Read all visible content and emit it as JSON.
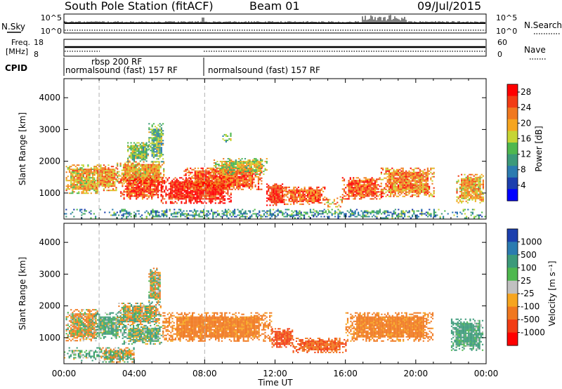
{
  "header": {
    "station": "South Pole Station (fitACF)",
    "beam": "Beam 01",
    "date": "09/Jul/2015"
  },
  "status_panels": {
    "nsky_label": "N.Sky",
    "nsky_ticks": [
      "10^5",
      "10^0"
    ],
    "nsearch_label": "N.Search",
    "nsearch_ticks": [
      "10^5",
      "10^0"
    ],
    "freq_label_line1": "Freq.",
    "freq_label_line2": "[MHz]",
    "freq_ticks": [
      "18",
      "8"
    ],
    "nave_label": "Nave",
    "nave_ticks": [
      "60",
      "0"
    ],
    "cpid_label": "CPID",
    "cpid_segments": [
      {
        "label": "normalsound (fast) 157 RF",
        "start_hour": 0,
        "end_hour": 8
      },
      {
        "label": "rbsp 200 RF",
        "start_hour": 2,
        "end_hour": 8
      },
      {
        "label": "normalsound (fast) 157 RF",
        "start_hour": 8,
        "end_hour": 24
      }
    ]
  },
  "chart_data": [
    {
      "type": "heatmap",
      "title": "",
      "xlabel": "Time UT",
      "ylabel": "Slant Range [km]",
      "xlim": [
        0,
        24
      ],
      "ylim": [
        180,
        4600
      ],
      "x_ticks": [
        "00:00",
        "04:00",
        "08:00",
        "12:00",
        "16:00",
        "20:00",
        "00:00"
      ],
      "y_ticks": [
        1000,
        2000,
        3000,
        4000
      ],
      "colorbar_label": "Power [dB]",
      "colorbar_ticks": [
        "4",
        "8",
        "12",
        "16",
        "20",
        "24",
        "28"
      ],
      "colorbar_range": [
        0,
        30
      ],
      "colors": [
        "#0000ff",
        "#1c3fae",
        "#2b7bb0",
        "#3c9a7a",
        "#4fb84f",
        "#c6d534",
        "#f6a51f",
        "#f0781f",
        "#f23c14",
        "#ff0000"
      ],
      "regions": [
        {
          "t0": 0.1,
          "t1": 1.9,
          "r0": 1000,
          "r1": 1900,
          "value": 19
        },
        {
          "t0": 1.7,
          "t1": 3.0,
          "r0": 1100,
          "r1": 1900,
          "value": 21
        },
        {
          "t0": 3.0,
          "t1": 5.7,
          "r0": 1300,
          "r1": 2000,
          "value": 20
        },
        {
          "t0": 3.2,
          "t1": 5.6,
          "r0": 800,
          "r1": 1500,
          "value": 25
        },
        {
          "t0": 5.5,
          "t1": 9.5,
          "r0": 700,
          "r1": 1500,
          "value": 28
        },
        {
          "t0": 6.8,
          "t1": 11.2,
          "r0": 1100,
          "r1": 1800,
          "value": 24
        },
        {
          "t0": 8.5,
          "t1": 11.5,
          "r0": 1600,
          "r1": 2100,
          "value": 17
        },
        {
          "t0": 11.5,
          "t1": 12.5,
          "r0": 600,
          "r1": 1300,
          "value": 27
        },
        {
          "t0": 12.5,
          "t1": 14.8,
          "r0": 650,
          "r1": 1200,
          "value": 24
        },
        {
          "t0": 14.8,
          "t1": 15.8,
          "r0": 500,
          "r1": 900,
          "value": 20
        },
        {
          "t0": 15.8,
          "t1": 18.0,
          "r0": 800,
          "r1": 1500,
          "value": 24
        },
        {
          "t0": 18.0,
          "t1": 21.0,
          "r0": 900,
          "r1": 1800,
          "value": 22
        },
        {
          "t0": 22.3,
          "t1": 23.8,
          "r0": 700,
          "r1": 1600,
          "value": 20
        },
        {
          "t0": 0.0,
          "t1": 24.0,
          "r0": 200,
          "r1": 500,
          "value": 10
        },
        {
          "t0": 4.8,
          "t1": 5.6,
          "r0": 2000,
          "r1": 3200,
          "value": 13
        },
        {
          "t0": 3.6,
          "t1": 4.8,
          "r0": 2000,
          "r1": 2600,
          "value": 14
        },
        {
          "t0": 9.0,
          "t1": 9.5,
          "r0": 2600,
          "r1": 2900,
          "value": 13
        }
      ]
    },
    {
      "type": "heatmap",
      "title": "",
      "xlabel": "Time UT",
      "ylabel": "Slant Range [km]",
      "xlim": [
        0,
        24
      ],
      "ylim": [
        180,
        4600
      ],
      "x_ticks": [
        "00:00",
        "04:00",
        "08:00",
        "12:00",
        "16:00",
        "20:00",
        "00:00"
      ],
      "y_ticks": [
        1000,
        2000,
        3000,
        4000
      ],
      "colorbar_label": "Velocity [m s⁻¹]",
      "colorbar_ticks": [
        "1000",
        "500",
        "100",
        "25",
        "-25",
        "-100",
        "-500",
        "-1000"
      ],
      "colors": [
        "#1c3fae",
        "#2b7bb0",
        "#3c9a7a",
        "#4fb84f",
        "#c0c0c0",
        "#f6a51f",
        "#f0781f",
        "#f23c14",
        "#ff0000"
      ],
      "regions": [
        {
          "t0": 0.1,
          "t1": 1.9,
          "r0": 900,
          "r1": 1900,
          "value": -80
        },
        {
          "t0": 1.7,
          "t1": 3.2,
          "r0": 1000,
          "r1": 1800,
          "value": 150
        },
        {
          "t0": 3.0,
          "t1": 5.5,
          "r0": 1400,
          "r1": 2100,
          "value": 0
        },
        {
          "t0": 3.3,
          "t1": 5.6,
          "r0": 800,
          "r1": 1400,
          "value": 120
        },
        {
          "t0": 5.6,
          "t1": 11.8,
          "r0": 900,
          "r1": 1800,
          "value": -250
        },
        {
          "t0": 11.8,
          "t1": 13.0,
          "r0": 700,
          "r1": 1300,
          "value": -600
        },
        {
          "t0": 13.0,
          "t1": 16.0,
          "r0": 550,
          "r1": 1000,
          "value": -450
        },
        {
          "t0": 16.0,
          "t1": 21.0,
          "r0": 900,
          "r1": 1800,
          "value": -250
        },
        {
          "t0": 22.0,
          "t1": 23.8,
          "r0": 600,
          "r1": 1600,
          "value": 200
        },
        {
          "t0": 0.0,
          "t1": 2.0,
          "r0": 300,
          "r1": 700,
          "value": 150
        },
        {
          "t0": 2.0,
          "t1": 4.0,
          "r0": 250,
          "r1": 700,
          "value": 0
        },
        {
          "t0": 4.8,
          "t1": 5.5,
          "r0": 2100,
          "r1": 3200,
          "value": -30
        }
      ]
    }
  ]
}
